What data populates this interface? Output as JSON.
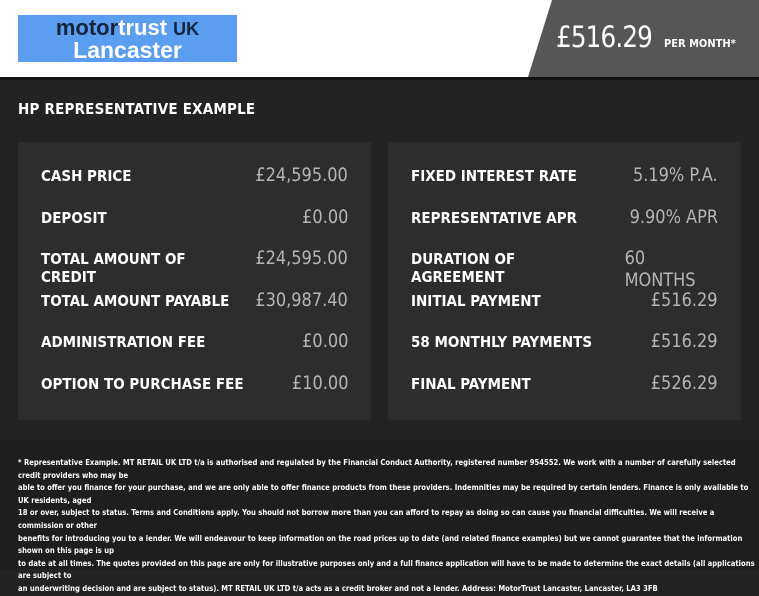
{
  "header": {
    "logo": {
      "word1": "motor",
      "word2": "trust",
      "word3": "UK",
      "line2": "Lancaster"
    },
    "monthly_price": "£516.29",
    "per_month_label": "PER MONTH*",
    "colors": {
      "logo_bg": "#5b9ef0",
      "price_bg": "#565656"
    }
  },
  "section_title": "HP REPRESENTATIVE EXAMPLE",
  "left_panel": [
    {
      "label": "CASH PRICE",
      "value": "£24,595.00"
    },
    {
      "label": "DEPOSIT",
      "value": "£0.00"
    },
    {
      "label": "TOTAL AMOUNT OF CREDIT",
      "value": "£24,595.00"
    },
    {
      "label": "TOTAL AMOUNT PAYABLE",
      "value": "£30,987.40"
    },
    {
      "label": "ADMINISTRATION FEE",
      "value": "£0.00"
    },
    {
      "label": "OPTION TO PURCHASE FEE",
      "value": "£10.00"
    }
  ],
  "right_panel": [
    {
      "label": "FIXED INTEREST RATE",
      "value": "5.19% P.A."
    },
    {
      "label": "REPRESENTATIVE APR",
      "value": "9.90% APR"
    },
    {
      "label": "DURATION OF AGREEMENT",
      "value": "60 MONTHS"
    },
    {
      "label": "INITIAL PAYMENT",
      "value": "£516.29"
    },
    {
      "label": "58 MONTHLY PAYMENTS",
      "value": "£516.29"
    },
    {
      "label": "FINAL PAYMENT",
      "value": "£526.29"
    }
  ],
  "disclaimer_lines": [
    "* Representative Example. MT RETAIL UK LTD t/a is authorised and regulated by the Financial Conduct Authority, registered number 954552. We work with a number of carefully selected credit providers who may be",
    "able to offer you finance for your purchase, and we are only able to offer finance products from these providers. Indemnities may be required by certain lenders. Finance is only available to UK residents, aged",
    "18 or over, subject to status. Terms and Conditions apply. You should not borrow more than you can afford to repay as doing so can cause you financial difficulties. We will receive a commission or other",
    "benefits for introducing you to a lender. We will endeavour to keep information on the road prices up to date (and related finance examples) but we cannot guarantee that the information shown on this page is up",
    "to date at all times. The quotes provided on this page are only for illustrative purposes only and a full finance application will have to be made to determine the exact details (all applications are subject to",
    "an underwriting decision and are subject to status). MT RETAIL UK LTD t/a acts as a credit broker and not a lender. Address: MotorTrust Lancaster, Lancaster, LA3 3FB"
  ]
}
